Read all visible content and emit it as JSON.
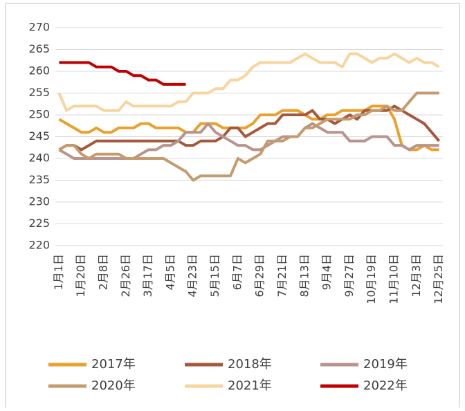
{
  "chart_data": {
    "type": "line",
    "categories": [
      "1月1日",
      null,
      null,
      "1月20日",
      null,
      null,
      "2月8日",
      null,
      null,
      "2月26日",
      null,
      null,
      "3月17日",
      null,
      null,
      "4月5日",
      null,
      null,
      "4月23日",
      null,
      null,
      "5月15日",
      null,
      null,
      "6月7日",
      null,
      null,
      "6月29日",
      null,
      null,
      "7月21日",
      null,
      null,
      "8月13日",
      null,
      null,
      "9月4日",
      null,
      null,
      "9月27日",
      null,
      null,
      "10月19日",
      null,
      null,
      "11月10日",
      null,
      null,
      "12月3日",
      null,
      null,
      "12月25日"
    ],
    "ylim": [
      220,
      270
    ],
    "yticks": [
      220,
      225,
      230,
      235,
      240,
      245,
      250,
      255,
      260,
      265,
      270
    ],
    "grid": true,
    "series": [
      {
        "name": "2017年",
        "color": "#e9a12c",
        "values": [
          249,
          248,
          247,
          246,
          246,
          247,
          246,
          246,
          247,
          247,
          247,
          248,
          248,
          247,
          247,
          247,
          247,
          246,
          246,
          248,
          248,
          248,
          247,
          247,
          247,
          247,
          248,
          250,
          250,
          250,
          251,
          251,
          251,
          250,
          249,
          249,
          250,
          250,
          251,
          251,
          251,
          251,
          252,
          252,
          252,
          249,
          243,
          242,
          242,
          243,
          242,
          242
        ]
      },
      {
        "name": "2018年",
        "color": "#a5593c",
        "values": [
          242,
          243,
          243,
          242,
          243,
          244,
          244,
          244,
          244,
          244,
          244,
          244,
          244,
          244,
          244,
          244,
          244,
          243,
          243,
          244,
          244,
          244,
          245,
          247,
          247,
          245,
          246,
          247,
          248,
          248,
          250,
          250,
          250,
          250,
          251,
          249,
          249,
          248,
          249,
          250,
          249,
          251,
          251,
          251,
          251,
          252,
          251,
          250,
          249,
          248,
          246,
          244
        ]
      },
      {
        "name": "2019年",
        "color": "#b8948c",
        "values": [
          242,
          241,
          240,
          240,
          240,
          240,
          240,
          240,
          240,
          240,
          240,
          241,
          242,
          242,
          243,
          243,
          244,
          246,
          246,
          246,
          248,
          246,
          245,
          244,
          243,
          243,
          242,
          242,
          243,
          244,
          245,
          245,
          245,
          247,
          248,
          247,
          246,
          246,
          246,
          244,
          244,
          244,
          245,
          245,
          245,
          243,
          243,
          242,
          243,
          243,
          243,
          243
        ]
      },
      {
        "name": "2020年",
        "color": "#c49b6c",
        "values": [
          242,
          243,
          243,
          241,
          240,
          241,
          241,
          241,
          241,
          240,
          240,
          240,
          240,
          240,
          240,
          239,
          238,
          237,
          235,
          236,
          236,
          236,
          236,
          236,
          240,
          239,
          240,
          241,
          244,
          244,
          244,
          245,
          245,
          247,
          247,
          248,
          249,
          249,
          249,
          249,
          250,
          250,
          251,
          251,
          252,
          251,
          251,
          253,
          255,
          255,
          255,
          255
        ]
      },
      {
        "name": "2021年",
        "color": "#f6d59f",
        "values": [
          255,
          251,
          252,
          252,
          252,
          252,
          251,
          251,
          251,
          253,
          252,
          252,
          252,
          252,
          252,
          252,
          253,
          253,
          255,
          255,
          255,
          256,
          256,
          258,
          258,
          259,
          261,
          262,
          262,
          262,
          262,
          262,
          263,
          264,
          263,
          262,
          262,
          262,
          261,
          264,
          264,
          263,
          262,
          263,
          263,
          264,
          263,
          262,
          263,
          262,
          262,
          261
        ]
      },
      {
        "name": "2022年",
        "color": "#c00000",
        "values": [
          262,
          262,
          262,
          262,
          262,
          261,
          261,
          261,
          260,
          260,
          259,
          259,
          258,
          258,
          257,
          257,
          257,
          257,
          null,
          null,
          null,
          null,
          null,
          null,
          null,
          null,
          null,
          null,
          null,
          null,
          null,
          null,
          null,
          null,
          null,
          null,
          null,
          null,
          null,
          null,
          null,
          null,
          null,
          null,
          null,
          null,
          null,
          null,
          null,
          null,
          null,
          null
        ]
      }
    ]
  }
}
